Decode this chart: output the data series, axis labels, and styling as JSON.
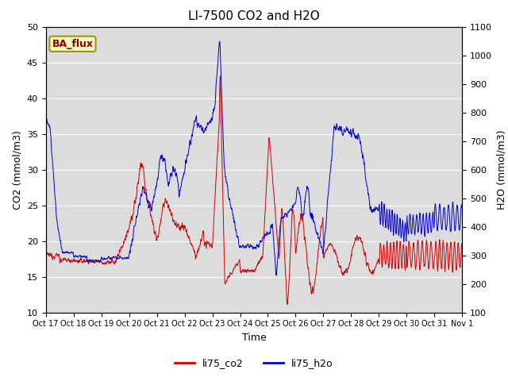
{
  "title": "LI-7500 CO2 and H2O",
  "xlabel": "Time",
  "ylabel_left": "CO2 (mmol/m3)",
  "ylabel_right": "H2O (mmol/m3)",
  "annotation": "BA_flux",
  "ylim_left": [
    10,
    50
  ],
  "ylim_right": [
    100,
    1100
  ],
  "co2_color": "#cc0000",
  "h2o_color": "#0000cc",
  "background_color": "#dcdcdc",
  "legend_labels": [
    "li75_co2",
    "li75_h2o"
  ],
  "x_tick_labels": [
    "Oct 17",
    "Oct 18",
    "Oct 19",
    "Oct 20",
    "Oct 21",
    "Oct 22",
    "Oct 23",
    "Oct 24",
    "Oct 25",
    "Oct 26",
    "Oct 27",
    "Oct 28",
    "Oct 29",
    "Oct 30",
    "Oct 31",
    "Nov 1"
  ],
  "num_points": 2000
}
